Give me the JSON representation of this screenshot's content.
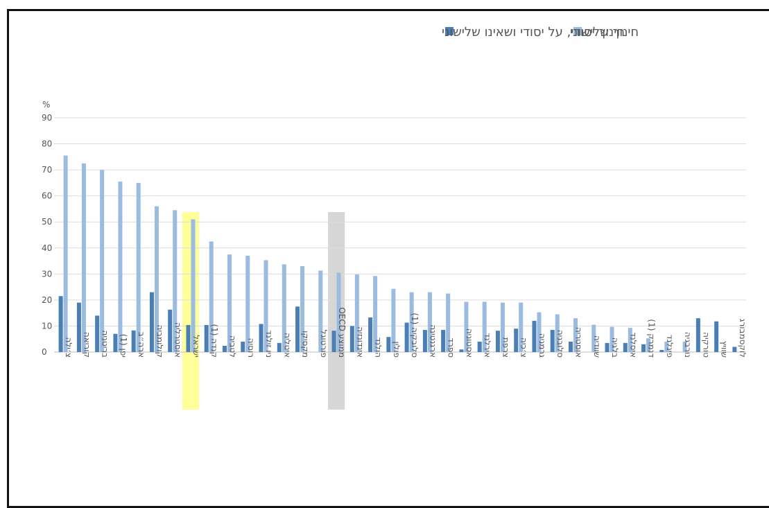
{
  "chart_data": {
    "type": "bar",
    "unit_label": "%",
    "ylim": [
      0,
      90
    ],
    "yticks": [
      0,
      10,
      20,
      30,
      40,
      50,
      60,
      70,
      80,
      90
    ],
    "grid": true,
    "legend_position": "top-center",
    "categories": [
      "צ׳ילה",
      "קוריאה",
      "בריטניה",
      "יפן (1)",
      "ארה״ב",
      "קולומביה",
      "אוסטרליה",
      "ישראל",
      "קנדה (1)",
      "לטביה",
      "רוסיה",
      "ניו זילנד",
      "איטליה",
      "מקסיקו",
      "פורטוגל",
      "ממוצע OECD",
      "אינדונזיה",
      "הולנד",
      "פולין",
      "סלובקיה (1)",
      "ארגנטינה",
      "ספרד",
      "אסטוניה",
      "אירלנד",
      "צרפת",
      "צ׳כיה",
      "גרמניה",
      "סלובניה",
      "אוסטריה",
      "שוודיה",
      "בלגיה",
      "איסלנד",
      "דנמרק (1)",
      "פינלנד",
      "נורבגיה",
      "טורקיה",
      "שוויץ",
      "לוקסמבורג"
    ],
    "series": [
      {
        "name": "חינוך יסודי, על יסודי ושאינו שלישוני",
        "color": "#4a7eb5",
        "values": [
          21.5,
          19,
          14,
          7,
          8.3,
          23,
          16.3,
          10.4,
          10.4,
          2.4,
          4,
          10.8,
          3.5,
          17.5,
          null,
          8.2,
          10,
          13.3,
          5.8,
          11.3,
          8.5,
          8.5,
          1,
          4,
          8.2,
          9,
          12,
          8.5,
          4,
          null,
          3.5,
          3.5,
          3,
          0.8,
          null,
          13,
          11.8,
          2
        ]
      },
      {
        "name": "חינוך שלישוני",
        "color": "#9bbbe0",
        "values": [
          75.5,
          72.5,
          70,
          65.5,
          65,
          56,
          54.5,
          51,
          42.5,
          37.5,
          37,
          35.3,
          33.7,
          33,
          31.3,
          30.5,
          29.8,
          29.2,
          24.3,
          23,
          23,
          22.5,
          19.3,
          19.3,
          19,
          19,
          15.3,
          14.5,
          13,
          10.5,
          9.7,
          9.3,
          5.3,
          4,
          4,
          null,
          null,
          null
        ]
      }
    ],
    "highlights": [
      {
        "category": "ישראל",
        "color": "#ffff99"
      },
      {
        "category": "ממוצע OECD",
        "color": "#d6d6d6"
      }
    ]
  }
}
